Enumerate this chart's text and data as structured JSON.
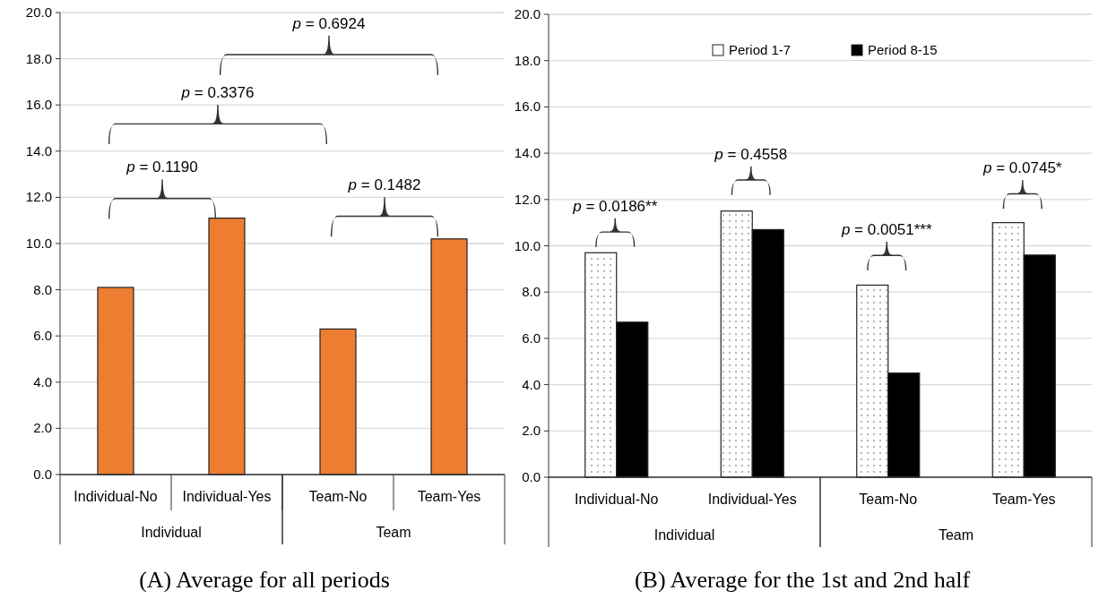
{
  "chart_data": [
    {
      "type": "bar",
      "title": "(A) Average for all periods",
      "categories": [
        "Individual-No",
        "Individual-Yes",
        "Team-No",
        "Team-Yes"
      ],
      "values": [
        8.1,
        11.1,
        6.3,
        10.2
      ],
      "color": "#ed7d31",
      "ylim": [
        0,
        20
      ],
      "yticks": [
        {
          "value": 0,
          "label": "0.0"
        },
        {
          "value": 2,
          "label": "2.0"
        },
        {
          "value": 4,
          "label": "4.0"
        },
        {
          "value": 6,
          "label": "6.0"
        },
        {
          "value": 8,
          "label": "8.0"
        },
        {
          "value": 10,
          "label": "10.0"
        },
        {
          "value": 12,
          "label": "12.0"
        },
        {
          "value": 14,
          "label": "14.0"
        },
        {
          "value": 16,
          "label": "16.0"
        },
        {
          "value": 18,
          "label": "18.0"
        },
        {
          "value": 20,
          "label": "20.0"
        }
      ],
      "grid": "y",
      "annotations": [
        "p = 0.6924",
        "p = 0.3376",
        "p = 0.1190",
        "p = 0.1482",
        "Individual",
        "Team"
      ]
    },
    {
      "type": "bar",
      "title": "(B) Average for the 1st and 2nd half",
      "categories": [
        "Individual-No",
        "Individual-Yes",
        "Team-No",
        "Team-Yes"
      ],
      "series": [
        {
          "name": "Period 1-7",
          "color": "#ffffff",
          "values": [
            9.7,
            11.5,
            8.3,
            11.0
          ]
        },
        {
          "name": "Period 8-15",
          "color": "#000000",
          "values": [
            6.7,
            10.7,
            4.5,
            9.6
          ]
        }
      ],
      "ylim": [
        0,
        20
      ],
      "yticks": [
        {
          "value": 0,
          "label": "0.0"
        },
        {
          "value": 2,
          "label": "2.0"
        },
        {
          "value": 4,
          "label": "4.0"
        },
        {
          "value": 6,
          "label": "6.0"
        },
        {
          "value": 8,
          "label": "8.0"
        },
        {
          "value": 10,
          "label": "10.0"
        },
        {
          "value": 12,
          "label": "12.0"
        },
        {
          "value": 14,
          "label": "14.0"
        },
        {
          "value": 16,
          "label": "16.0"
        },
        {
          "value": 18,
          "label": "18.0"
        },
        {
          "value": 20,
          "label": "20.0"
        }
      ],
      "grid": "y",
      "legend": "top",
      "annotations": [
        "p = 0.4558",
        "p = 0.0745*",
        "p = 0.0186**",
        "p = 0.0051***",
        "Individual",
        "Team"
      ]
    }
  ]
}
